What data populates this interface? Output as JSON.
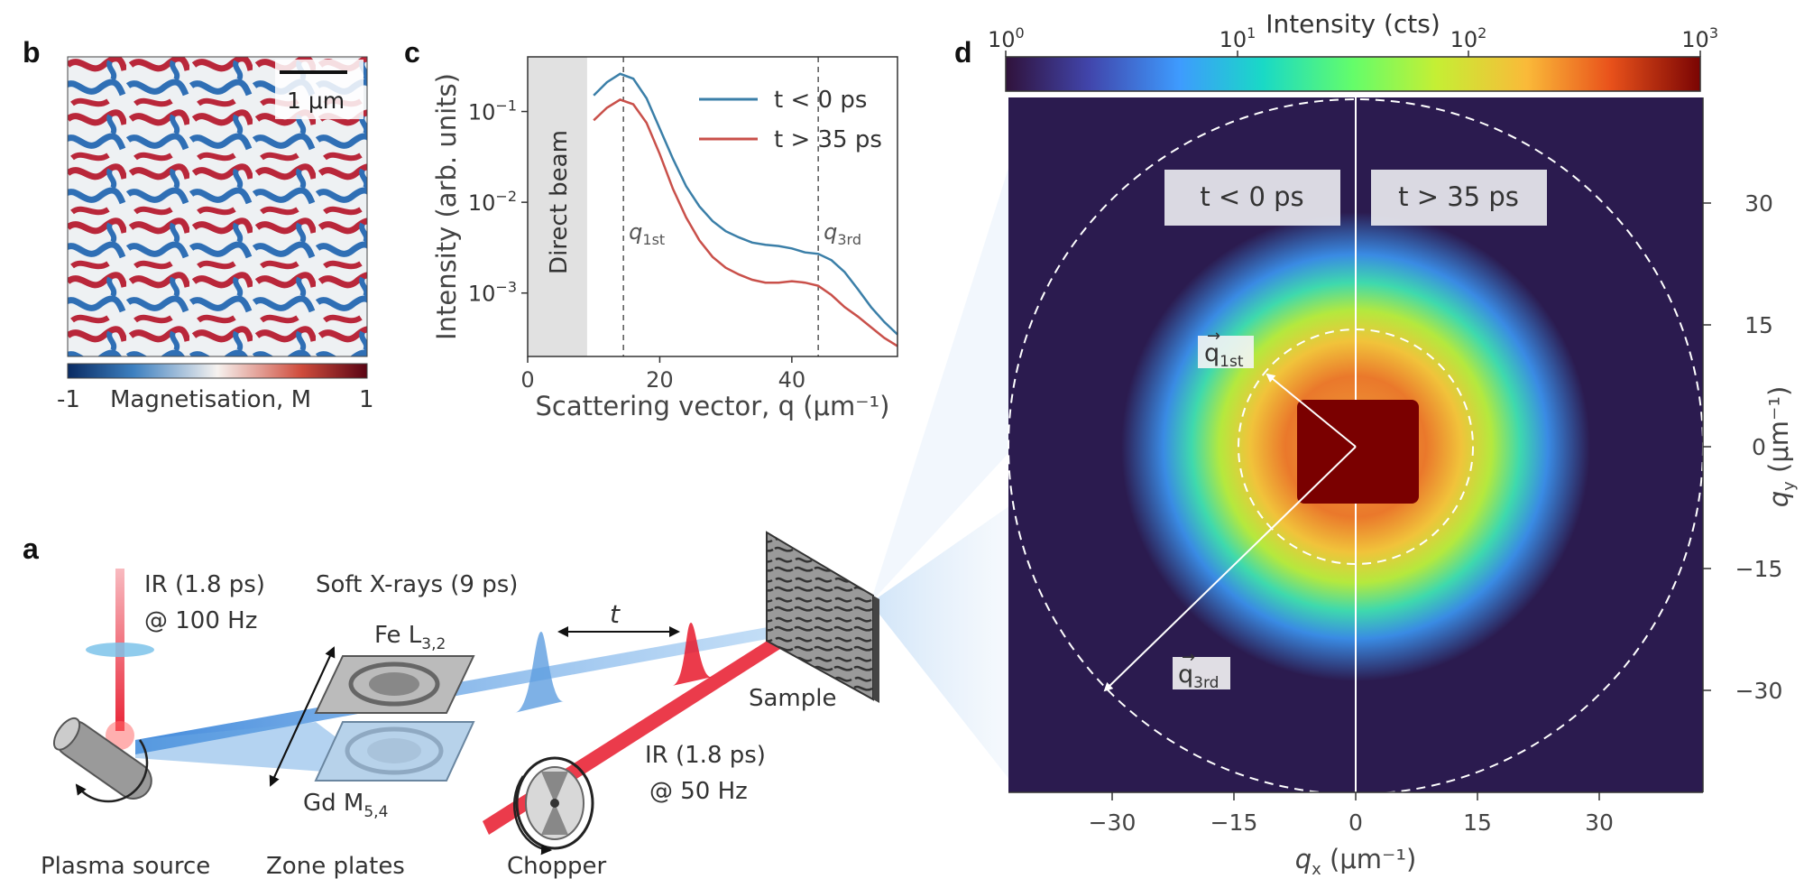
{
  "panels": {
    "a": {
      "label": "a",
      "ir_source": {
        "line1": "IR (1.8 ps)",
        "line2": "@ 100 Hz"
      },
      "soft_xrays": "Soft X-rays (9 ps)",
      "fe_edge": {
        "text": "Fe L",
        "sub": "3,2"
      },
      "gd_edge": {
        "text": "Gd M",
        "sub": "5,4"
      },
      "delay": "t",
      "sample": "Sample",
      "ir_pump": {
        "line1": "IR (1.8 ps)",
        "line2": "@ 50 Hz"
      },
      "plasma_source": "Plasma source",
      "zone_plates": "Zone plates",
      "chopper": "Chopper"
    },
    "b": {
      "label": "b",
      "scalebar": "1 μm",
      "colorbar_min": "-1",
      "colorbar_max": "1",
      "colorbar_label": "Magnetisation, M"
    },
    "d": {
      "label": "d",
      "colorbar_title": "Intensity (cts)",
      "colorbar_ticks": [
        {
          "base": "10",
          "exp": "0"
        },
        {
          "base": "10",
          "exp": "1"
        },
        {
          "base": "10",
          "exp": "2"
        },
        {
          "base": "10",
          "exp": "3"
        }
      ],
      "box_left": "t < 0 ps",
      "box_right": "t > 35 ps",
      "q1st": {
        "text": "q",
        "sub": "1st"
      },
      "q3rd": {
        "text": "q",
        "sub": "3rd"
      },
      "xlabel": "q",
      "xlabel_sub": "x",
      "xlabel_unit": " (μm⁻¹)",
      "ylabel": "q",
      "ylabel_sub": "y",
      "ylabel_unit": " (μm⁻¹)",
      "xticks": [
        "−30",
        "−15",
        "0",
        "15",
        "30"
      ],
      "yticks": [
        "30",
        "15",
        "0",
        "−15",
        "−30"
      ]
    }
  },
  "colors": {
    "series_before": "#3b7fa8",
    "series_after": "#c9504a",
    "ir_beam": "#e8192c",
    "xray_beam": "#6aa8e4",
    "map_background": "#2b1b4f",
    "blocker": "#7a0000"
  },
  "chart_data": {
    "label": "c",
    "type": "line",
    "xlabel": "Scattering vector, q (μm⁻¹)",
    "ylabel": "Intensity (arb. units)",
    "xlim": [
      0,
      56
    ],
    "ylim": [
      0.0002,
      0.4
    ],
    "yscale": "log",
    "xticks": [
      0,
      20,
      40
    ],
    "yticks": [
      {
        "value": 0.1,
        "base": "10",
        "exp": "−1"
      },
      {
        "value": 0.01,
        "base": "10",
        "exp": "−2"
      },
      {
        "value": 0.001,
        "base": "10",
        "exp": "−3"
      }
    ],
    "shaded_region": {
      "x": [
        0,
        9
      ],
      "label": "Direct beam"
    },
    "vlines": [
      {
        "x": 14.5,
        "label": "q",
        "sub": "1st"
      },
      {
        "x": 44,
        "label": "q",
        "sub": "3rd"
      }
    ],
    "legend_position": "top-right",
    "series": [
      {
        "name": "t < 0 ps",
        "x": [
          10,
          12,
          14,
          16,
          18,
          20,
          22,
          24,
          26,
          28,
          30,
          32,
          34,
          36,
          38,
          40,
          42,
          44,
          46,
          48,
          50,
          52,
          54,
          56
        ],
        "values": [
          0.15,
          0.21,
          0.26,
          0.23,
          0.14,
          0.065,
          0.03,
          0.015,
          0.009,
          0.0062,
          0.0048,
          0.0041,
          0.0036,
          0.0034,
          0.0033,
          0.0031,
          0.0028,
          0.0027,
          0.0023,
          0.0017,
          0.0011,
          0.0007,
          0.00048,
          0.00035
        ]
      },
      {
        "name": "t > 35 ps",
        "x": [
          10,
          12,
          14,
          16,
          18,
          20,
          22,
          24,
          26,
          28,
          30,
          32,
          34,
          36,
          38,
          40,
          42,
          44,
          46,
          48,
          50,
          52,
          54,
          56
        ],
        "values": [
          0.08,
          0.11,
          0.135,
          0.12,
          0.075,
          0.034,
          0.014,
          0.0068,
          0.0038,
          0.0025,
          0.0019,
          0.0016,
          0.0014,
          0.0013,
          0.0013,
          0.00135,
          0.0013,
          0.0012,
          0.00095,
          0.0007,
          0.00055,
          0.00042,
          0.00032,
          0.00026
        ]
      }
    ]
  }
}
